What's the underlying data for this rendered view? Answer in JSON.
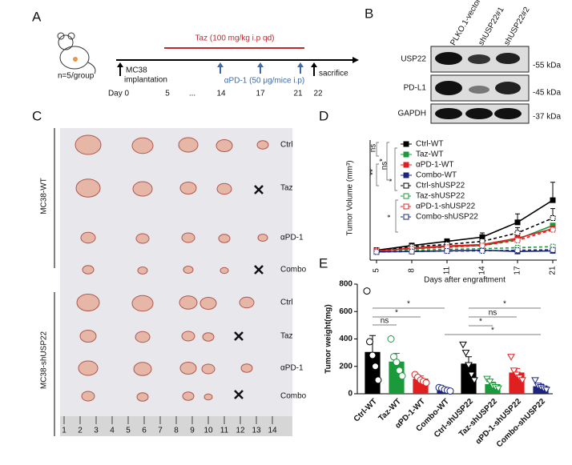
{
  "panel_labels": [
    "A",
    "B",
    "C",
    "D",
    "E"
  ],
  "panel_a": {
    "group_size": "n=5/group",
    "taz": "Taz (100 mg/kg i.p qd)",
    "implant": [
      "MC38",
      "implantation"
    ],
    "apd1": "αPD-1 (50 μg/mice i.p)",
    "sacrifice": "sacrifice",
    "days": [
      "Day 0",
      "5",
      "...",
      "14",
      "17",
      "21",
      "22"
    ]
  },
  "panel_b": {
    "lanes": [
      "PLKO.1-vector",
      "shUSP22#1",
      "shUSP22#2"
    ],
    "rows": [
      "USP22",
      "PD-L1",
      "GAPDH"
    ],
    "sizes": [
      "-55 kDa",
      "-45 kDa",
      "-37 kDa"
    ]
  },
  "panel_c": {
    "groups": [
      "MC38-WT",
      "MC38-shUSP22"
    ],
    "rows": [
      "Ctrl",
      "Taz",
      "αPD-1",
      "Combo",
      "Ctrl",
      "Taz",
      "αPD-1",
      "Combo"
    ],
    "ruler": [
      "1",
      "2",
      "3",
      "4",
      "5",
      "6",
      "7",
      "8",
      "9",
      "10",
      "11",
      "12",
      "13",
      "14"
    ]
  },
  "chart_data": [
    {
      "type": "line",
      "x_label": "Days after engraftment",
      "y_label": "Tumor Volume (mm³)",
      "categories": [
        "5",
        "8",
        "11",
        "14",
        "17",
        "21"
      ],
      "ylim": [
        0,
        550
      ],
      "annotations": [
        "ns",
        "*",
        "**",
        "ns",
        "*",
        "*"
      ],
      "series": [
        {
          "name": "Ctrl-WT",
          "color": "#000000",
          "dashed": false,
          "values": [
            28,
            50,
            70,
            90,
            160,
            265
          ],
          "errors": [
            5,
            10,
            12,
            20,
            40,
            85
          ]
        },
        {
          "name": "Taz-WT",
          "color": "#1a9a3a",
          "dashed": false,
          "values": [
            25,
            35,
            45,
            50,
            80,
            145
          ]
        },
        {
          "name": "αPD-1-WT",
          "color": "#e02020",
          "dashed": false,
          "values": [
            25,
            38,
            48,
            55,
            85,
            130
          ]
        },
        {
          "name": "Combo-WT",
          "color": "#1a237e",
          "dashed": false,
          "values": [
            20,
            22,
            25,
            28,
            22,
            25
          ]
        },
        {
          "name": "Ctrl-shUSP22",
          "color": "#000000",
          "dashed": true,
          "values": [
            28,
            45,
            55,
            70,
            110,
            180
          ],
          "errors": [
            4,
            8,
            10,
            15,
            25,
            45
          ]
        },
        {
          "name": "Taz-shUSP22",
          "color": "#1a9a3a",
          "dashed": true,
          "values": [
            22,
            28,
            32,
            35,
            40,
            45
          ]
        },
        {
          "name": "αPD-1-shUSP22",
          "color": "#e02020",
          "dashed": true,
          "values": [
            25,
            35,
            42,
            50,
            75,
            125
          ]
        },
        {
          "name": "Combo-shUSP22",
          "color": "#1a237e",
          "dashed": true,
          "values": [
            20,
            22,
            24,
            25,
            28,
            30
          ]
        }
      ]
    },
    {
      "type": "bar",
      "y_label": "Tumor weight(mg)",
      "categories": [
        "Ctrl-WT",
        "Taz-WT",
        "αPD-1-WT",
        "Combo-WT",
        "Ctrl-shUSP22",
        "Taz-shUSP22",
        "αPD-1-shUSP22",
        "Combo-shUSP22"
      ],
      "values": [
        305,
        235,
        110,
        30,
        220,
        70,
        155,
        55
      ],
      "errors": [
        120,
        60,
        20,
        5,
        50,
        15,
        30,
        15
      ],
      "colors": [
        "#000000",
        "#1a9a3a",
        "#e02020",
        "#1a237e",
        "#000000",
        "#1a9a3a",
        "#e02020",
        "#1a237e"
      ],
      "point_markers": [
        "circle",
        "circle",
        "circle",
        "circle",
        "triangle",
        "triangle",
        "triangle",
        "triangle"
      ],
      "points": [
        [
          750,
          380,
          280,
          200,
          100
        ],
        [
          400,
          270,
          230,
          170,
          130
        ],
        [
          140,
          120,
          100,
          90,
          80
        ],
        [
          45,
          40,
          30,
          25,
          20
        ],
        [
          360,
          300,
          210,
          140,
          100
        ],
        [
          110,
          90,
          60,
          50,
          40
        ],
        [
          270,
          170,
          140,
          120,
          100
        ],
        [
          100,
          60,
          50,
          40,
          30
        ]
      ],
      "ylim": [
        0,
        800
      ],
      "yticks": [
        0,
        200,
        400,
        600,
        800
      ],
      "annotations": [
        "*",
        "*",
        "ns",
        "*",
        "*",
        "ns",
        "*"
      ]
    }
  ]
}
